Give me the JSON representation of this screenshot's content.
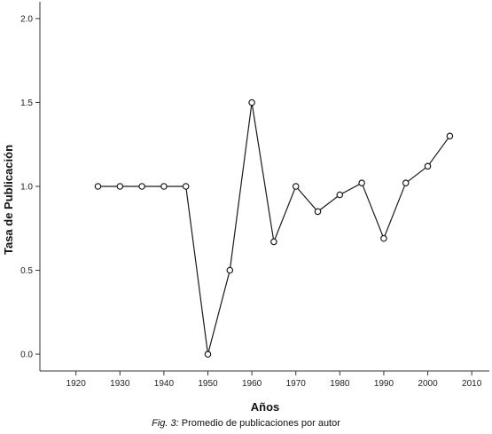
{
  "chart_data": {
    "type": "line",
    "title": "",
    "xlabel": "Años",
    "ylabel": "Tasa de Publicación",
    "xlim": [
      1912,
      2014
    ],
    "ylim": [
      -0.1,
      2.1
    ],
    "xticks": [
      1920,
      1930,
      1940,
      1950,
      1960,
      1970,
      1980,
      1990,
      2000,
      2010
    ],
    "yticks": [
      0.0,
      0.5,
      1.0,
      1.5,
      2.0
    ],
    "xtick_labels": [
      "1920",
      "1930",
      "1940",
      "1950",
      "1960",
      "1970",
      "1980",
      "1990",
      "2000",
      "2010"
    ],
    "ytick_labels": [
      "0.0",
      "0.5",
      "1.0",
      "1.5",
      "2.0"
    ],
    "grid": false,
    "legend": "none",
    "series": [
      {
        "x": [
          1925,
          1930,
          1935,
          1940,
          1945,
          1950,
          1955,
          1960,
          1965,
          1970,
          1975,
          1980,
          1985,
          1990,
          1995,
          2000,
          2005
        ],
        "y": [
          1.0,
          1.0,
          1.0,
          1.0,
          1.0,
          0.0,
          0.5,
          1.5,
          0.67,
          1.0,
          0.85,
          0.95,
          1.02,
          0.69,
          1.02,
          1.12,
          1.3
        ],
        "color": "#1a1a1a",
        "marker": "open-circle"
      }
    ]
  },
  "caption": {
    "label": "Fig. 3:",
    "text": "Promedio de publicaciones por autor"
  }
}
